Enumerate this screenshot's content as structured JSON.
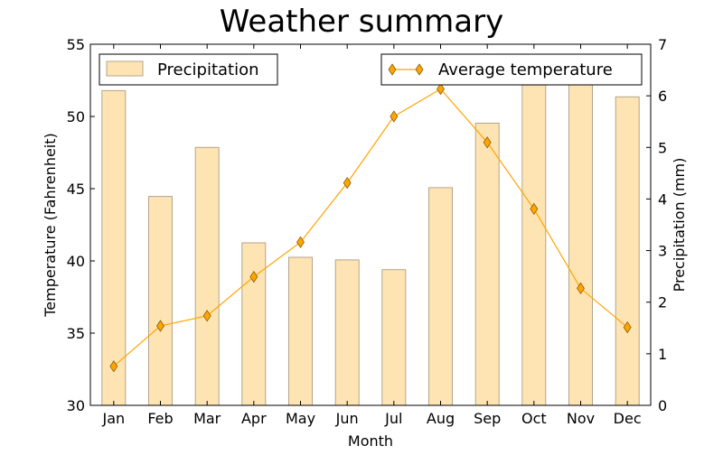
{
  "chart_data": {
    "type": "bar+line",
    "title": "Weather summary",
    "xlabel": "Month",
    "ylabel_left": "Temperature (Fahrenheit)",
    "ylabel_right": "Precipitation (mm)",
    "categories": [
      "Jan",
      "Feb",
      "Mar",
      "Apr",
      "May",
      "Jun",
      "Jul",
      "Aug",
      "Sep",
      "Oct",
      "Nov",
      "Dec"
    ],
    "ylim_left": [
      30,
      55
    ],
    "yticks_left": [
      30,
      35,
      40,
      45,
      50,
      55
    ],
    "ylim_right": [
      0,
      7
    ],
    "yticks_right": [
      0,
      1,
      2,
      3,
      4,
      5,
      6,
      7
    ],
    "series": [
      {
        "name": "Precipitation",
        "kind": "bar",
        "axis": "right",
        "color": "#ffe4b3",
        "edge_color": "#b4a48a",
        "values": [
          6.1,
          4.05,
          5.0,
          3.15,
          2.87,
          2.82,
          2.63,
          4.22,
          5.47,
          6.21,
          6.3,
          5.98
        ]
      },
      {
        "name": "Average temperature",
        "kind": "line",
        "axis": "left",
        "marker": "diamond",
        "color": "#ffa500",
        "values": [
          32.7,
          35.5,
          36.2,
          38.9,
          41.3,
          45.4,
          50.0,
          51.9,
          48.2,
          43.6,
          38.1,
          35.4
        ]
      }
    ],
    "legends": [
      {
        "series": "Precipitation",
        "placement": "upper-left"
      },
      {
        "series": "Average temperature",
        "placement": "upper-right"
      }
    ],
    "grid": false
  }
}
